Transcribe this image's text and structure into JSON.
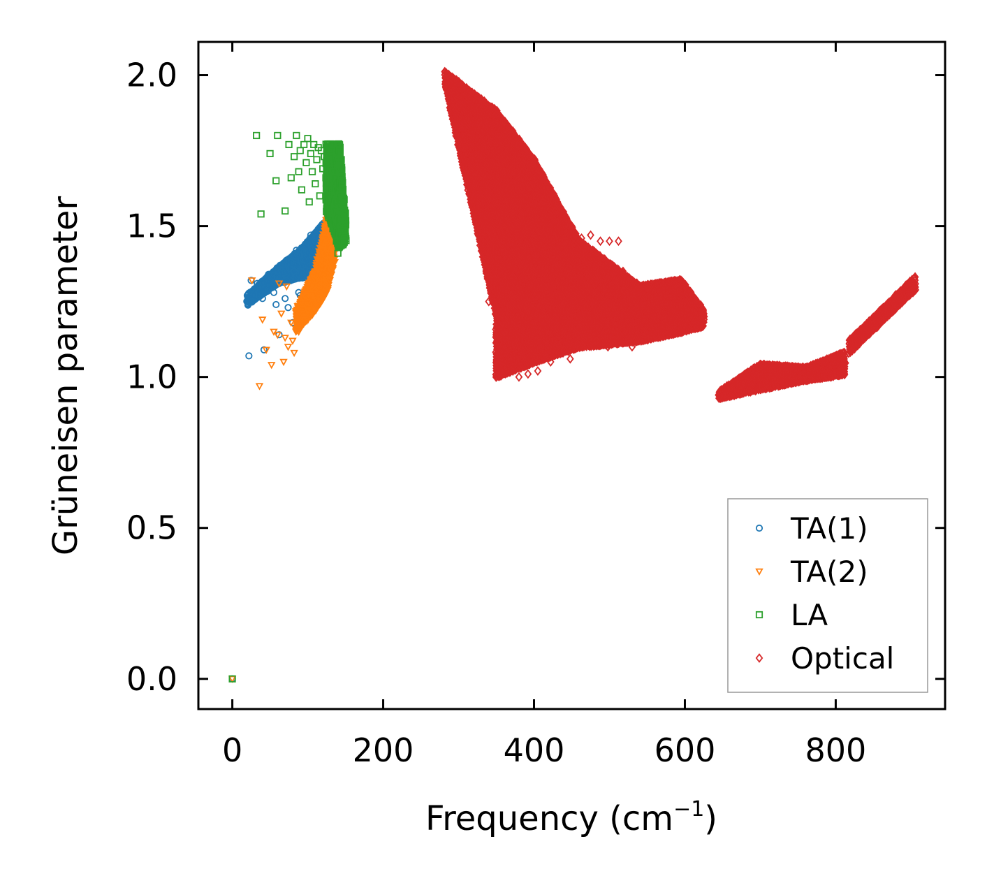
{
  "chart_data": {
    "type": "scatter",
    "title": "",
    "xlabel": "Frequency (cm",
    "xlabel_superscript": "−1",
    "xlabel_suffix": ")",
    "ylabel": "Grüneisen parameter",
    "xlim": [
      -45,
      945
    ],
    "ylim": [
      -0.1,
      2.11
    ],
    "xticks": [
      0,
      200,
      400,
      600,
      800
    ],
    "xtick_labels": [
      "0",
      "200",
      "400",
      "600",
      "800"
    ],
    "yticks": [
      0.0,
      0.5,
      1.0,
      1.5,
      2.0
    ],
    "ytick_labels": [
      "0.0",
      "0.5",
      "1.0",
      "1.5",
      "2.0"
    ],
    "grid": false,
    "legend_position": "bottom-right",
    "series": [
      {
        "name": "TA(1)",
        "marker": "circle",
        "color": "#1f77b4",
        "points": [
          [
            0,
            0.0
          ],
          [
            22,
            1.07
          ],
          [
            25,
            1.32
          ],
          [
            33,
            1.31
          ],
          [
            40,
            1.26
          ],
          [
            42,
            1.09
          ],
          [
            48,
            1.34
          ],
          [
            52,
            1.33
          ],
          [
            55,
            1.28
          ],
          [
            58,
            1.24
          ],
          [
            62,
            1.14
          ],
          [
            64,
            1.33
          ],
          [
            67,
            1.37
          ],
          [
            70,
            1.26
          ],
          [
            72,
            1.32
          ],
          [
            74,
            1.23
          ],
          [
            76,
            1.36
          ],
          [
            78,
            1.38
          ],
          [
            80,
            1.18
          ],
          [
            82,
            1.35
          ],
          [
            85,
            1.42
          ],
          [
            88,
            1.28
          ],
          [
            90,
            1.27
          ],
          [
            92,
            1.33
          ],
          [
            94,
            1.39
          ],
          [
            96,
            1.23
          ],
          [
            98,
            1.44
          ],
          [
            100,
            1.3
          ],
          [
            102,
            1.35
          ],
          [
            104,
            1.47
          ],
          [
            106,
            1.4
          ],
          [
            108,
            1.37
          ],
          [
            110,
            1.45
          ],
          [
            112,
            1.42
          ],
          [
            114,
            1.49
          ],
          [
            116,
            1.44
          ],
          [
            118,
            1.4
          ],
          [
            120,
            1.5
          ],
          [
            122,
            1.46
          ],
          [
            124,
            1.51
          ],
          [
            126,
            1.48
          ],
          [
            128,
            1.52
          ],
          [
            118,
            1.35
          ],
          [
            122,
            1.38
          ],
          [
            112,
            1.33
          ],
          [
            108,
            1.3
          ],
          [
            126,
            1.42
          ],
          [
            124,
            1.37
          ]
        ],
        "dense_bands": [
          {
            "x": [
              20,
              60
            ],
            "y_lo": [
              1.24,
              1.31
            ],
            "y_hi": [
              1.27,
              1.36
            ]
          },
          {
            "x": [
              60,
              90
            ],
            "y_lo": [
              1.31,
              1.33
            ],
            "y_hi": [
              1.36,
              1.42
            ]
          },
          {
            "x": [
              90,
              115
            ],
            "y_lo": [
              1.33,
              1.33
            ],
            "y_hi": [
              1.42,
              1.49
            ]
          },
          {
            "x": [
              115,
              130
            ],
            "y_lo": [
              1.33,
              1.35
            ],
            "y_hi": [
              1.49,
              1.53
            ]
          }
        ]
      },
      {
        "name": "TA(2)",
        "marker": "triangle-down",
        "color": "#ff7f0e",
        "points": [
          [
            0,
            0.0
          ],
          [
            26,
            1.32
          ],
          [
            36,
            0.97
          ],
          [
            40,
            1.19
          ],
          [
            45,
            1.09
          ],
          [
            52,
            1.04
          ],
          [
            55,
            1.15
          ],
          [
            60,
            1.14
          ],
          [
            62,
            1.31
          ],
          [
            65,
            1.21
          ],
          [
            68,
            1.05
          ],
          [
            70,
            1.13
          ],
          [
            72,
            1.3
          ],
          [
            74,
            1.1
          ],
          [
            78,
            1.18
          ],
          [
            80,
            1.12
          ],
          [
            82,
            1.08
          ],
          [
            84,
            1.16
          ],
          [
            86,
            1.22
          ],
          [
            88,
            1.15
          ],
          [
            90,
            1.17
          ],
          [
            92,
            1.2
          ],
          [
            94,
            1.24
          ],
          [
            96,
            1.19
          ],
          [
            98,
            1.27
          ],
          [
            100,
            1.22
          ],
          [
            104,
            1.26
          ],
          [
            108,
            1.3
          ],
          [
            112,
            1.33
          ],
          [
            116,
            1.38
          ],
          [
            120,
            1.42
          ],
          [
            124,
            1.46
          ],
          [
            128,
            1.5
          ],
          [
            130,
            1.55
          ],
          [
            132,
            1.58
          ],
          [
            134,
            1.52
          ],
          [
            136,
            1.47
          ],
          [
            138,
            1.43
          ]
        ],
        "dense_bands": [
          {
            "x": [
              85,
              110
            ],
            "y_lo": [
              1.15,
              1.22
            ],
            "y_hi": [
              1.22,
              1.35
            ]
          },
          {
            "x": [
              110,
              125
            ],
            "y_lo": [
              1.22,
              1.28
            ],
            "y_hi": [
              1.35,
              1.52
            ]
          },
          {
            "x": [
              125,
              135
            ],
            "y_lo": [
              1.28,
              1.38
            ],
            "y_hi": [
              1.52,
              1.6
            ]
          }
        ]
      },
      {
        "name": "LA",
        "marker": "square",
        "color": "#2ca02c",
        "points": [
          [
            0,
            0.0
          ],
          [
            32,
            1.8
          ],
          [
            38,
            1.54
          ],
          [
            50,
            1.74
          ],
          [
            58,
            1.65
          ],
          [
            60,
            1.8
          ],
          [
            70,
            1.55
          ],
          [
            75,
            1.77
          ],
          [
            78,
            1.66
          ],
          [
            82,
            1.73
          ],
          [
            85,
            1.8
          ],
          [
            88,
            1.68
          ],
          [
            90,
            1.75
          ],
          [
            92,
            1.62
          ],
          [
            95,
            1.77
          ],
          [
            98,
            1.71
          ],
          [
            100,
            1.79
          ],
          [
            102,
            1.58
          ],
          [
            104,
            1.74
          ],
          [
            106,
            1.68
          ],
          [
            108,
            1.77
          ],
          [
            110,
            1.64
          ],
          [
            112,
            1.72
          ],
          [
            114,
            1.76
          ],
          [
            116,
            1.6
          ],
          [
            118,
            1.75
          ],
          [
            120,
            1.69
          ],
          [
            122,
            1.73
          ],
          [
            124,
            1.66
          ],
          [
            126,
            1.77
          ],
          [
            128,
            1.71
          ],
          [
            130,
            1.62
          ],
          [
            132,
            1.75
          ],
          [
            134,
            1.68
          ],
          [
            136,
            1.55
          ],
          [
            138,
            1.45
          ],
          [
            140,
            1.41
          ],
          [
            144,
            1.48
          ],
          [
            146,
            1.52
          ]
        ],
        "dense_bands": [
          {
            "x": [
              125,
              133
            ],
            "y_lo": [
              1.55,
              1.5
            ],
            "y_hi": [
              1.77,
              1.77
            ]
          },
          {
            "x": [
              133,
              142
            ],
            "y_lo": [
              1.5,
              1.43
            ],
            "y_hi": [
              1.77,
              1.77
            ]
          },
          {
            "x": [
              142,
              150
            ],
            "y_lo": [
              1.43,
              1.45
            ],
            "y_hi": [
              1.77,
              1.52
            ]
          }
        ]
      },
      {
        "name": "Optical",
        "marker": "diamond",
        "color": "#d62728",
        "points": [
          [
            282,
            2.01
          ],
          [
            300,
            1.9
          ],
          [
            330,
            1.83
          ],
          [
            345,
            1.88
          ],
          [
            350,
            1.0
          ],
          [
            362,
            1.02
          ],
          [
            380,
            1.0
          ],
          [
            392,
            1.01
          ],
          [
            405,
            1.02
          ],
          [
            422,
            1.05
          ],
          [
            432,
            1.12
          ],
          [
            448,
            1.06
          ],
          [
            452,
            1.27
          ],
          [
            458,
            1.14
          ],
          [
            463,
            1.46
          ],
          [
            470,
            1.34
          ],
          [
            478,
            1.42
          ],
          [
            483,
            1.12
          ],
          [
            492,
            1.14
          ],
          [
            500,
            1.45
          ],
          [
            504,
            1.37
          ],
          [
            512,
            1.45
          ],
          [
            518,
            1.35
          ],
          [
            525,
            1.18
          ],
          [
            530,
            1.1
          ],
          [
            498,
            1.1
          ],
          [
            458,
            1.11
          ],
          [
            440,
            1.09
          ],
          [
            340,
            1.25
          ],
          [
            384,
            1.7
          ],
          [
            395,
            1.63
          ],
          [
            412,
            1.58
          ],
          [
            428,
            1.55
          ],
          [
            450,
            1.5
          ],
          [
            475,
            1.47
          ],
          [
            488,
            1.45
          ],
          [
            508,
            1.32
          ]
        ],
        "dense_bands": [
          {
            "x": [
              282,
              350
            ],
            "y_lo": [
              1.97,
              1.2
            ],
            "y_hi": [
              2.01,
              1.88
            ]
          },
          {
            "x": [
              350,
              400
            ],
            "y_lo": [
              1.0,
              1.05
            ],
            "y_hi": [
              1.88,
              1.72
            ]
          },
          {
            "x": [
              400,
              460
            ],
            "y_lo": [
              1.05,
              1.1
            ],
            "y_hi": [
              1.72,
              1.45
            ]
          },
          {
            "x": [
              460,
              540
            ],
            "y_lo": [
              1.1,
              1.12
            ],
            "y_hi": [
              1.45,
              1.3
            ]
          },
          {
            "x": [
              540,
              595
            ],
            "y_lo": [
              1.12,
              1.15
            ],
            "y_hi": [
              1.3,
              1.32
            ]
          },
          {
            "x": [
              595,
              625
            ],
            "y_lo": [
              1.15,
              1.17
            ],
            "y_hi": [
              1.32,
              1.22
            ]
          },
          {
            "x": [
              645,
              700
            ],
            "y_lo": [
              0.93,
              0.96
            ],
            "y_hi": [
              0.95,
              1.04
            ]
          },
          {
            "x": [
              700,
              760
            ],
            "y_lo": [
              0.96,
              0.99
            ],
            "y_hi": [
              1.04,
              1.03
            ]
          },
          {
            "x": [
              760,
              812
            ],
            "y_lo": [
              0.99,
              1.01
            ],
            "y_hi": [
              1.03,
              1.08
            ]
          },
          {
            "x": [
              818,
              905
            ],
            "y_lo": [
              1.08,
              1.29
            ],
            "y_hi": [
              1.12,
              1.33
            ]
          }
        ]
      }
    ]
  }
}
